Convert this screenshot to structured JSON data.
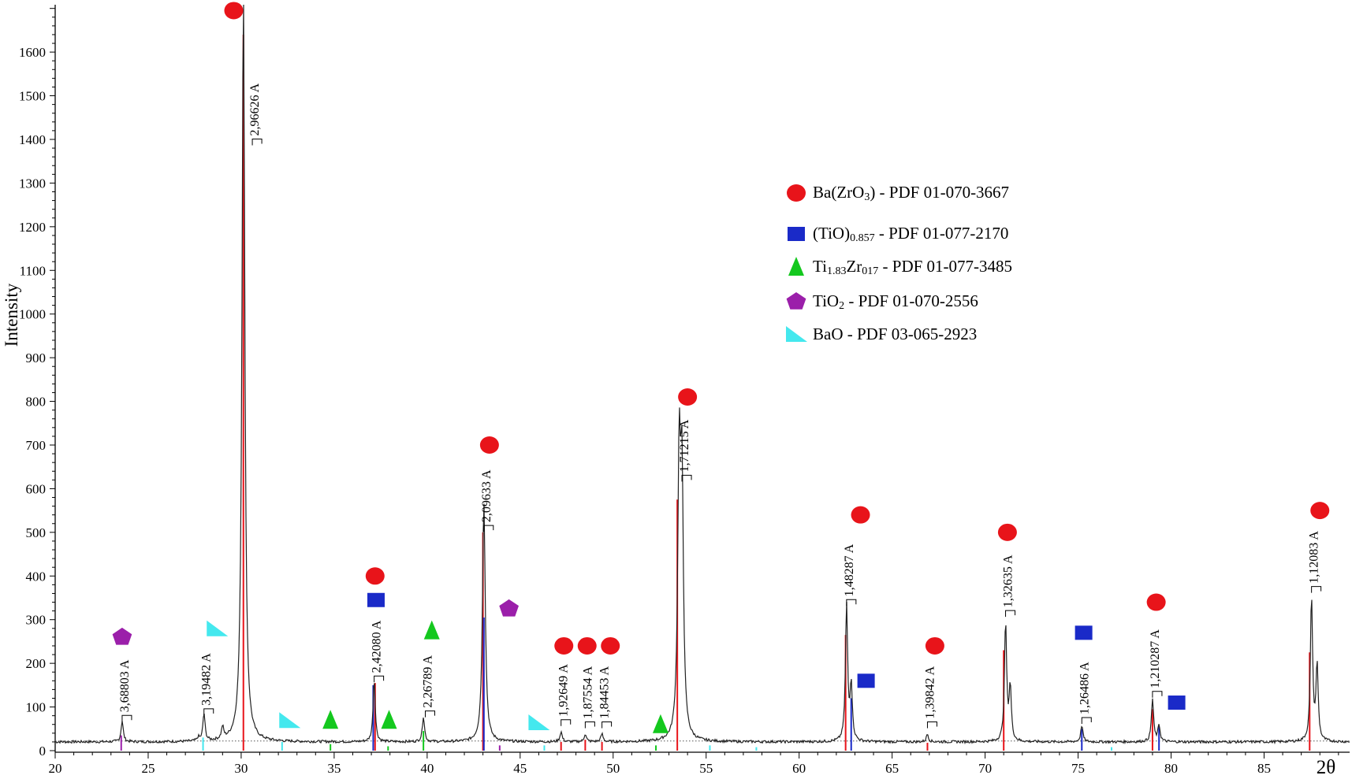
{
  "chart_data": {
    "type": "line",
    "ylabel": "Intensity",
    "xlabel": "2θ",
    "xlim": [
      20,
      89.6
    ],
    "ylim": [
      0,
      1700
    ],
    "x_ticks": [
      20,
      25,
      30,
      35,
      40,
      45,
      50,
      55,
      60,
      65,
      70,
      75,
      80,
      85
    ],
    "y_ticks": [
      0,
      100,
      200,
      300,
      400,
      500,
      600,
      700,
      800,
      900,
      1000,
      1100,
      1200,
      1300,
      1400,
      1500,
      1600
    ],
    "baseline": 22,
    "series": [
      {
        "color": "#222222",
        "peaks": [
          {
            "x": 23.6,
            "y": 70
          },
          {
            "x": 27.7,
            "y": 30
          },
          {
            "x": 28.0,
            "y": 85
          },
          {
            "x": 29.0,
            "y": 50
          },
          {
            "x": 30.12,
            "y": 1740
          },
          {
            "x": 37.15,
            "y": 165
          },
          {
            "x": 39.8,
            "y": 80
          },
          {
            "x": 43.05,
            "y": 575
          },
          {
            "x": 47.2,
            "y": 45
          },
          {
            "x": 48.5,
            "y": 40
          },
          {
            "x": 49.4,
            "y": 40
          },
          {
            "x": 53.55,
            "y": 635
          },
          {
            "x": 53.7,
            "y": 580
          },
          {
            "x": 62.55,
            "y": 335
          },
          {
            "x": 62.8,
            "y": 150
          },
          {
            "x": 66.9,
            "y": 40
          },
          {
            "x": 71.1,
            "y": 295
          },
          {
            "x": 71.35,
            "y": 145
          },
          {
            "x": 75.2,
            "y": 60
          },
          {
            "x": 79.0,
            "y": 120
          },
          {
            "x": 79.35,
            "y": 60
          },
          {
            "x": 87.55,
            "y": 355
          },
          {
            "x": 87.85,
            "y": 195
          }
        ]
      }
    ],
    "reference_lines": [
      {
        "phase": "Ba(ZrO3)",
        "color": "#e8141a",
        "lines": [
          [
            30.12,
            1640
          ],
          [
            37.2,
            155
          ],
          [
            43.0,
            500
          ],
          [
            47.2,
            20
          ],
          [
            48.5,
            25
          ],
          [
            49.4,
            20
          ],
          [
            53.45,
            575
          ],
          [
            62.5,
            265
          ],
          [
            66.9,
            18
          ],
          [
            71.0,
            230
          ],
          [
            79.0,
            95
          ],
          [
            87.45,
            225
          ]
        ]
      },
      {
        "phase": "(TiO)0.857",
        "color": "#1a2ac8",
        "lines": [
          [
            37.1,
            150
          ],
          [
            43.05,
            305
          ],
          [
            62.8,
            120
          ],
          [
            75.2,
            50
          ],
          [
            79.35,
            55
          ]
        ]
      },
      {
        "phase": "Ti1.83Zr017",
        "color": "#14c81e",
        "lines": [
          [
            34.8,
            15
          ],
          [
            37.9,
            10
          ],
          [
            39.8,
            45
          ],
          [
            52.3,
            12
          ]
        ]
      },
      {
        "phase": "TiO2",
        "color": "#9b1faa",
        "lines": [
          [
            23.55,
            35
          ],
          [
            43.9,
            12
          ]
        ]
      },
      {
        "phase": "BaO",
        "color": "#44e8ee",
        "lines": [
          [
            27.95,
            30
          ],
          [
            32.2,
            20
          ],
          [
            46.3,
            12
          ],
          [
            55.2,
            12
          ],
          [
            57.7,
            8
          ],
          [
            76.8,
            8
          ]
        ]
      }
    ],
    "peak_labels": [
      {
        "text": "3,68803 A",
        "x": 23.6,
        "y": 70
      },
      {
        "text": "3,19482 A",
        "x": 28.0,
        "y": 85
      },
      {
        "text": "2,96626 A",
        "x": 30.6,
        "y": 1390
      },
      {
        "text": "2,42080 A",
        "x": 37.15,
        "y": 160
      },
      {
        "text": "2,26789 A",
        "x": 39.9,
        "y": 80
      },
      {
        "text": "2,09633 A",
        "x": 43.05,
        "y": 505
      },
      {
        "text": "1,92649 A",
        "x": 47.2,
        "y": 60
      },
      {
        "text": "1,87554 A",
        "x": 48.5,
        "y": 55
      },
      {
        "text": "1,84453 A",
        "x": 49.4,
        "y": 55
      },
      {
        "text": "1,71215 A",
        "x": 53.7,
        "y": 620
      },
      {
        "text": "1,48287 A",
        "x": 62.55,
        "y": 335
      },
      {
        "text": "1,39842 A",
        "x": 66.9,
        "y": 55
      },
      {
        "text": "1,32635 A",
        "x": 71.1,
        "y": 310
      },
      {
        "text": "1,26486 A",
        "x": 75.2,
        "y": 65
      },
      {
        "text": "1,210287 A",
        "x": 79.0,
        "y": 125
      },
      {
        "text": "1,12083 A",
        "x": 87.55,
        "y": 365
      }
    ],
    "markers": [
      {
        "symbol": "circle",
        "x": 29.6,
        "y": 1695
      },
      {
        "symbol": "circle",
        "x": 37.2,
        "y": 400
      },
      {
        "symbol": "circle",
        "x": 43.35,
        "y": 700
      },
      {
        "symbol": "circle",
        "x": 47.35,
        "y": 240
      },
      {
        "symbol": "circle",
        "x": 48.6,
        "y": 240
      },
      {
        "symbol": "circle",
        "x": 49.85,
        "y": 240
      },
      {
        "symbol": "circle",
        "x": 54.0,
        "y": 810
      },
      {
        "symbol": "circle",
        "x": 63.3,
        "y": 540
      },
      {
        "symbol": "circle",
        "x": 67.3,
        "y": 240
      },
      {
        "symbol": "circle",
        "x": 71.2,
        "y": 500
      },
      {
        "symbol": "circle",
        "x": 79.2,
        "y": 340
      },
      {
        "symbol": "circle",
        "x": 88.0,
        "y": 550
      },
      {
        "symbol": "square",
        "x": 37.25,
        "y": 345
      },
      {
        "symbol": "square",
        "x": 63.6,
        "y": 160
      },
      {
        "symbol": "square",
        "x": 75.3,
        "y": 270
      },
      {
        "symbol": "square",
        "x": 80.3,
        "y": 110
      },
      {
        "symbol": "triangle",
        "x": 34.8,
        "y": 70
      },
      {
        "symbol": "triangle",
        "x": 37.95,
        "y": 70
      },
      {
        "symbol": "triangle",
        "x": 40.25,
        "y": 275
      },
      {
        "symbol": "triangle",
        "x": 52.55,
        "y": 60
      },
      {
        "symbol": "pentagon",
        "x": 23.6,
        "y": 260
      },
      {
        "symbol": "pentagon",
        "x": 44.4,
        "y": 325
      },
      {
        "symbol": "wedge",
        "x": 28.7,
        "y": 280
      },
      {
        "symbol": "wedge",
        "x": 32.6,
        "y": 70
      },
      {
        "symbol": "wedge",
        "x": 46.0,
        "y": 65
      }
    ],
    "legend": {
      "position": "top-right",
      "entries": [
        {
          "symbol": "circle",
          "color": "#e8141a",
          "parts": [
            {
              "t": "Ba(ZrO"
            },
            {
              "t": "3",
              "sub": true
            },
            {
              "t": ") - PDF 01-070-3667"
            }
          ]
        },
        {
          "symbol": "square",
          "color": "#1a2ac8",
          "parts": [
            {
              "t": "(TiO)"
            },
            {
              "t": "0.857",
              "sub": true
            },
            {
              "t": " - PDF 01-077-2170"
            }
          ]
        },
        {
          "symbol": "triangle",
          "color": "#14c81e",
          "parts": [
            {
              "t": "Ti"
            },
            {
              "t": "1.83",
              "sub": true
            },
            {
              "t": "Zr"
            },
            {
              "t": "017",
              "sub": true
            },
            {
              "t": " - PDF 01-077-3485"
            }
          ]
        },
        {
          "symbol": "pentagon",
          "color": "#9b1faa",
          "parts": [
            {
              "t": "TiO"
            },
            {
              "t": "2",
              "sub": true
            },
            {
              "t": " - PDF 01-070-2556"
            }
          ]
        },
        {
          "symbol": "wedge",
          "color": "#44e8ee",
          "parts": [
            {
              "t": "BaO - PDF 03-065-2923"
            }
          ]
        }
      ]
    },
    "colors": {
      "Ba(ZrO3)": "#e8141a",
      "(TiO)0.857": "#1a2ac8",
      "Ti1.83Zr017": "#14c81e",
      "TiO2": "#9b1faa",
      "BaO": "#44e8ee",
      "trace": "#222222"
    }
  }
}
